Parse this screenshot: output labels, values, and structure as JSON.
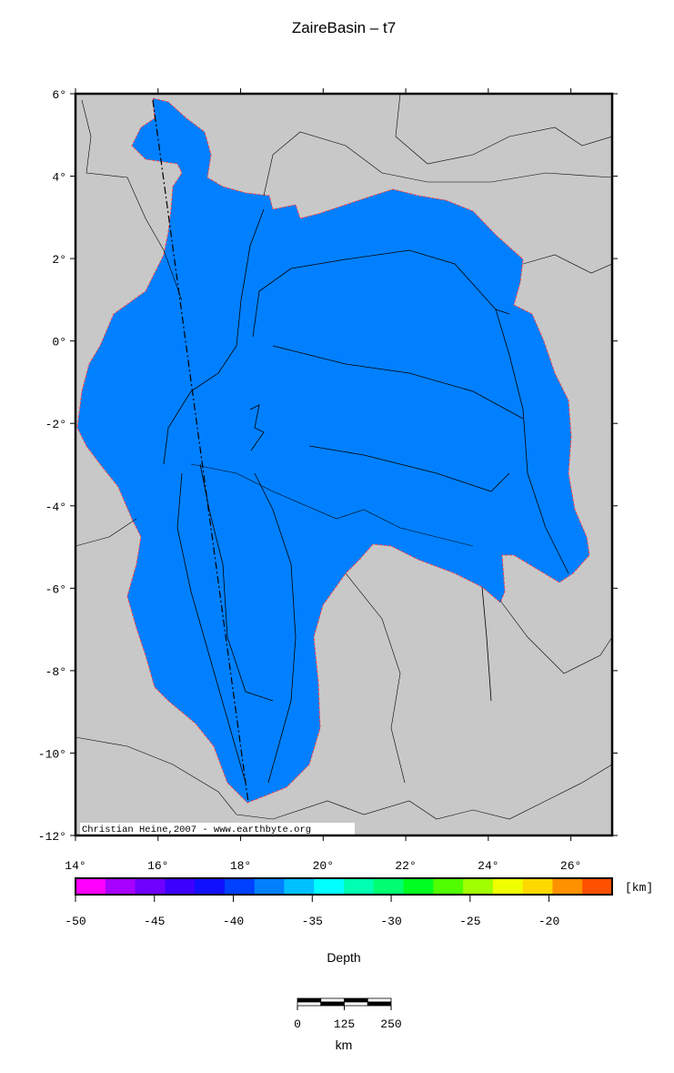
{
  "title": "ZaireBasin – t7",
  "map": {
    "lon_lim": [
      14,
      27
    ],
    "lat_lim": [
      -12,
      6
    ],
    "lon_ticks": [
      {
        "value": 14,
        "label": "14°"
      },
      {
        "value": 16,
        "label": "16°"
      },
      {
        "value": 18,
        "label": "18°"
      },
      {
        "value": 20,
        "label": "20°"
      },
      {
        "value": 22,
        "label": "22°"
      },
      {
        "value": 24,
        "label": "24°"
      },
      {
        "value": 26,
        "label": "26°"
      }
    ],
    "lat_ticks": [
      {
        "value": 6,
        "label": "6°"
      },
      {
        "value": 4,
        "label": "4°"
      },
      {
        "value": 2,
        "label": "2°"
      },
      {
        "value": 0,
        "label": "0°"
      },
      {
        "value": -2,
        "label": "-2°"
      },
      {
        "value": -4,
        "label": "-4°"
      },
      {
        "value": -6,
        "label": "-6°"
      },
      {
        "value": -8,
        "label": "-8°"
      },
      {
        "value": -10,
        "label": "-10°"
      },
      {
        "value": -12,
        "label": "-12°"
      }
    ],
    "credit": "Christian Heine,2007 - www.earthbyte.org"
  },
  "colorbar": {
    "lim": [
      -50,
      -16
    ],
    "ticks": [
      -50,
      -45,
      -40,
      -35,
      -30,
      -25,
      -20
    ],
    "unit": "[km]",
    "label": "Depth",
    "colors": [
      "#ff00ff",
      "#a800ff",
      "#7000ff",
      "#3c00ff",
      "#1010ff",
      "#0040ff",
      "#0080ff",
      "#00c0ff",
      "#00ffff",
      "#00ffb0",
      "#00ff70",
      "#00ff20",
      "#50ff00",
      "#a0ff00",
      "#f0ff00",
      "#ffd800",
      "#ff9000",
      "#ff5000"
    ]
  },
  "scale_bar": {
    "ticks": [
      0,
      125,
      250
    ],
    "unit": "km"
  }
}
